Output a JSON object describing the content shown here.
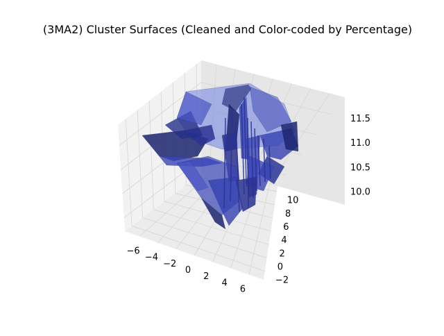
{
  "chart_data": {
    "type": "surface",
    "title": "(3MA2) Cluster Surfaces (Cleaned and Color-coded by Percentage)",
    "x_axis": {
      "ticks": [
        -6,
        -4,
        -2,
        0,
        2,
        4,
        6
      ],
      "labels": [
        "−6",
        "−4",
        "−2",
        "0",
        "2",
        "4",
        "6"
      ]
    },
    "y_axis": {
      "ticks": [
        -2,
        0,
        2,
        4,
        6,
        8,
        10
      ],
      "labels": [
        "−2",
        "0",
        "2",
        "4",
        "6",
        "8",
        "10"
      ]
    },
    "z_axis": {
      "ticks": [
        10.0,
        10.5,
        11.0,
        11.5
      ],
      "labels": [
        "10.0",
        "10.5",
        "11.0",
        "11.5"
      ]
    },
    "grid": true,
    "surface_color": "#3a46b8",
    "surface_dark": "#1c2470",
    "surface_light": "#6f7fe0",
    "surface_alpha": 0.75
  }
}
